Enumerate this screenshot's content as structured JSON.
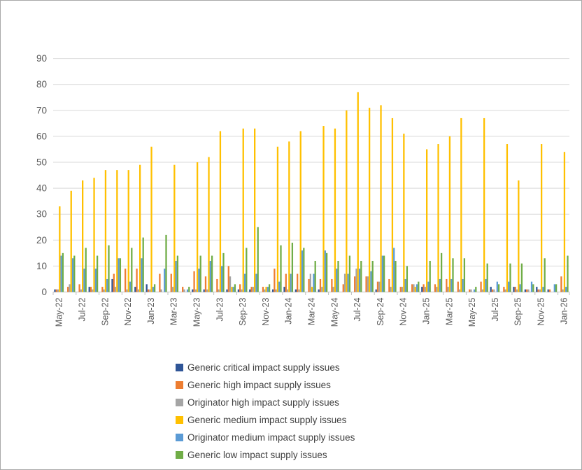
{
  "chart_data": {
    "type": "bar",
    "title": "",
    "xlabel": "",
    "ylabel": "",
    "ylim": [
      0,
      90
    ],
    "ytick_step": 10,
    "yticks": [
      "0",
      "10",
      "20",
      "30",
      "40",
      "50",
      "60",
      "70",
      "80",
      "90"
    ],
    "grid": true,
    "legend_position": "bottom",
    "label_every": 2,
    "categories": [
      "May-22",
      "Jun-22",
      "Jul-22",
      "Aug-22",
      "Sep-22",
      "Oct-22",
      "Nov-22",
      "Dec-22",
      "Jan-23",
      "Feb-23",
      "Mar-23",
      "Apr-23",
      "May-23",
      "Jun-23",
      "Jul-23",
      "Aug-23",
      "Sep-23",
      "Oct-23",
      "Nov-23",
      "Dec-23",
      "Jan-24",
      "Feb-24",
      "Mar-24",
      "Apr-24",
      "May-24",
      "Jun-24",
      "Jul-24",
      "Aug-24",
      "Sep-24",
      "Oct-24",
      "Nov-24",
      "Dec-24",
      "Jan-25",
      "Feb-25",
      "Mar-25",
      "Apr-25",
      "May-25",
      "Jun-25",
      "Jul-25",
      "Aug-25",
      "Sep-25",
      "Oct-25",
      "Nov-25",
      "Dec-25",
      "Jan-26"
    ],
    "series": [
      {
        "name": "Generic critical impact supply issues",
        "color": "#2F5597",
        "values": [
          1,
          0,
          0,
          2,
          0,
          5,
          0,
          2,
          3,
          0,
          0,
          0,
          1,
          1,
          0,
          1,
          1,
          1,
          0,
          1,
          2,
          1,
          0,
          1,
          0,
          0,
          0,
          0,
          1,
          0,
          0,
          0,
          2,
          0,
          0,
          0,
          0,
          0,
          2,
          0,
          2,
          1,
          2,
          1,
          0
        ]
      },
      {
        "name": "Generic high impact supply issues",
        "color": "#ED7D31",
        "values": [
          1,
          2,
          3,
          2,
          2,
          7,
          9,
          9,
          1,
          7,
          7,
          2,
          8,
          6,
          5,
          10,
          3,
          2,
          2,
          9,
          7,
          7,
          5,
          5,
          5,
          3,
          6,
          6,
          4,
          5,
          2,
          3,
          3,
          3,
          5,
          4,
          1,
          4,
          1,
          2,
          2,
          1,
          1,
          1,
          6
        ]
      },
      {
        "name": "Originator high impact supply issues",
        "color": "#A5A5A5",
        "values": [
          1,
          3,
          1,
          1,
          1,
          2,
          1,
          1,
          1,
          1,
          2,
          1,
          1,
          1,
          1,
          6,
          1,
          2,
          1,
          1,
          1,
          1,
          7,
          2,
          2,
          7,
          9,
          6,
          4,
          2,
          2,
          3,
          2,
          2,
          2,
          1,
          1,
          1,
          1,
          1,
          1,
          1,
          1,
          0,
          1
        ]
      },
      {
        "name": "Generic medium impact supply issues",
        "color": "#FFC000",
        "values": [
          33,
          39,
          43,
          44,
          47,
          47,
          47,
          49,
          56,
          0,
          49,
          0,
          50,
          52,
          62,
          2,
          63,
          63,
          2,
          56,
          58,
          62,
          2,
          64,
          63,
          70,
          77,
          71,
          72,
          67,
          61,
          2,
          55,
          57,
          60,
          67,
          0,
          67,
          0,
          57,
          43,
          0,
          57,
          0,
          54
        ]
      },
      {
        "name": "Originator medium impact supply issues",
        "color": "#5B9BD5",
        "values": [
          14,
          13,
          9,
          9,
          5,
          13,
          4,
          13,
          2,
          9,
          12,
          1,
          9,
          12,
          10,
          2,
          7,
          7,
          2,
          4,
          7,
          16,
          7,
          16,
          9,
          7,
          9,
          8,
          14,
          17,
          5,
          3,
          4,
          5,
          5,
          5,
          1,
          5,
          4,
          4,
          3,
          4,
          2,
          3,
          2
        ]
      },
      {
        "name": "Generic low impact supply issues",
        "color": "#70AD47",
        "values": [
          15,
          14,
          17,
          14,
          18,
          13,
          17,
          21,
          3,
          22,
          14,
          2,
          14,
          14,
          15,
          3,
          17,
          25,
          3,
          18,
          19,
          17,
          12,
          15,
          12,
          14,
          12,
          12,
          14,
          12,
          10,
          4,
          12,
          15,
          13,
          13,
          2,
          11,
          3,
          11,
          11,
          3,
          13,
          3,
          14
        ]
      }
    ],
    "colors": {
      "gridline": "#D9D9D9",
      "axis_line": "#BFBFBF",
      "tick_label": "#595959",
      "legend_text": "#404040",
      "background": "#FFFFFF"
    }
  }
}
